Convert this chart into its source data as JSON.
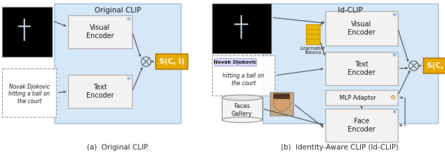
{
  "fig_width": 6.4,
  "fig_height": 2.21,
  "dpi": 100,
  "bg_color": "#ffffff",
  "light_blue": "#d6e8f7",
  "box_fill": "#f2f2f2",
  "gold_fill": "#e8a800",
  "caption_left": "(a)  Original CLIP.",
  "caption_right": "(b)  Identity-Aware CLIP (Id-CLIP).",
  "label_orig_clip": "Original CLIP",
  "label_id_clip": "Id-CLIP",
  "label_visual_enc": "Visual\nEncoder",
  "label_text_enc": "Text\nEncoder",
  "label_face_enc": "Face\nEncoder",
  "label_mlp": "MLP Adaptor",
  "label_learnable": "Learnable\nTokens",
  "label_faces_gallery": "Faces\nGallery",
  "label_sci": "S(C, I)",
  "label_novak_left": "Novak Djokovic\nhitting a ball on\nthe court",
  "label_novak_right_italic": "hitting a ball on\nthe court",
  "label_novak_right_bold": "Novak Djokovic"
}
